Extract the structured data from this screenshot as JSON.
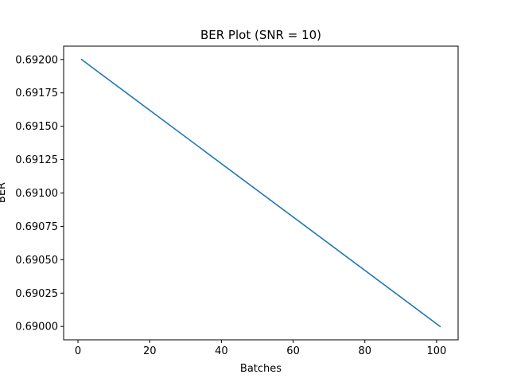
{
  "chart_data": {
    "type": "line",
    "title": "BER Plot (SNR = 10)",
    "xlabel": "Batches",
    "ylabel": "BER",
    "xlim": [
      -4,
      106
    ],
    "ylim": [
      0.6899,
      0.6921
    ],
    "xticks": [
      0,
      20,
      40,
      60,
      80,
      100
    ],
    "xtick_labels": [
      "0",
      "20",
      "40",
      "60",
      "80",
      "100"
    ],
    "yticks": [
      0.69,
      0.69025,
      0.6905,
      0.69075,
      0.691,
      0.69125,
      0.6915,
      0.69175,
      0.692
    ],
    "ytick_labels": [
      "0.69000",
      "0.69025",
      "0.69050",
      "0.69075",
      "0.69100",
      "0.69125",
      "0.69150",
      "0.69175",
      "0.69200"
    ],
    "grid": false,
    "series": [
      {
        "color": "#1f77b4",
        "x": [
          1,
          101
        ],
        "y": [
          0.692,
          0.69
        ]
      }
    ]
  }
}
